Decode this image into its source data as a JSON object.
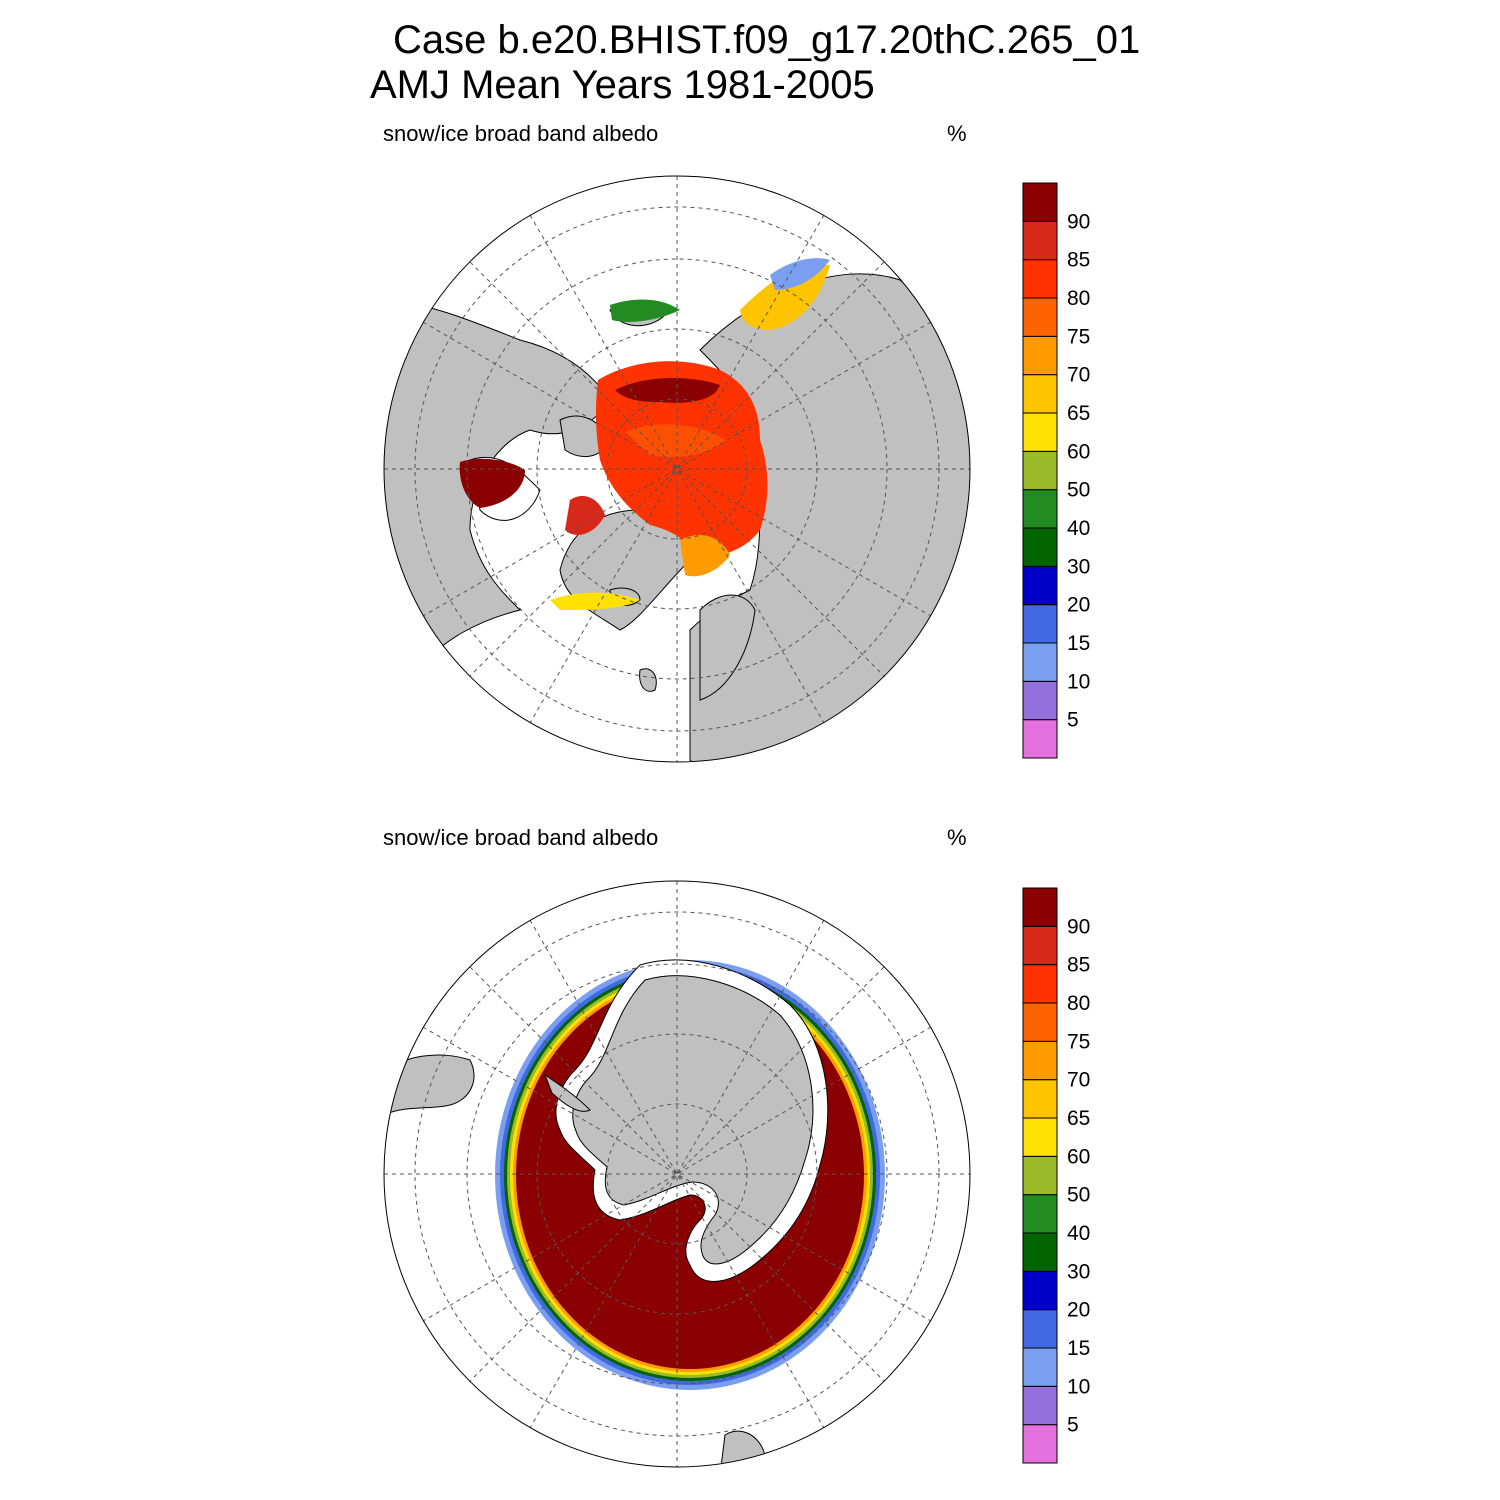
{
  "header": {
    "title_line1": "Case b.e20.BHIST.f09_g17.20thC.265_01",
    "title_line2": "AMJ Mean   Years 1981-2005"
  },
  "panels": [
    {
      "hemisphere": "north",
      "field_label": "snow/ice broad band albedo",
      "units": "%"
    },
    {
      "hemisphere": "south",
      "field_label": "snow/ice broad band albedo",
      "units": "%"
    }
  ],
  "colorbar": {
    "levels": [
      "5",
      "10",
      "15",
      "20",
      "30",
      "40",
      "50",
      "60",
      "65",
      "70",
      "75",
      "80",
      "85",
      "90"
    ],
    "colors": [
      "#e471de",
      "#9370db",
      "#7b9ff0",
      "#4169e1",
      "#0000c8",
      "#006400",
      "#228b22",
      "#9aba2a",
      "#ffe100",
      "#ffc400",
      "#ff9a00",
      "#ff6200",
      "#ff3300",
      "#d8281a",
      "#8b0000"
    ]
  },
  "map_colors": {
    "land": "#c0c0c0",
    "ocean": "#ffffff",
    "grid": "#555555"
  }
}
